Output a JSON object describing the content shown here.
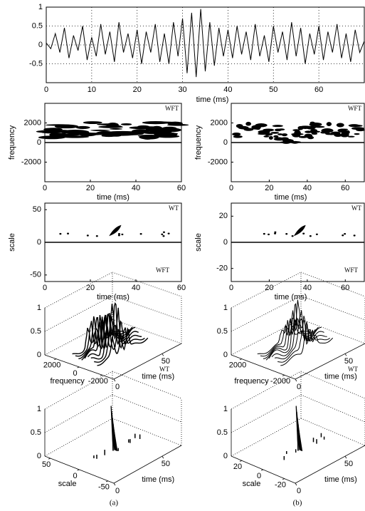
{
  "chart_data": [
    {
      "type": "line",
      "xlabel": "time (ms)",
      "color": "#000000",
      "grid": true,
      "x": [
        0,
        1,
        2,
        3,
        4,
        5,
        6,
        7,
        8,
        9,
        10,
        11,
        12,
        13,
        14,
        15,
        16,
        17,
        18,
        19,
        20,
        21,
        22,
        23,
        24,
        25,
        26,
        27,
        28,
        29,
        30,
        31,
        32,
        33,
        34,
        35,
        36,
        37,
        38,
        39,
        40,
        41,
        42,
        43,
        44,
        45,
        46,
        47,
        48,
        49,
        50,
        51,
        52,
        53,
        54,
        55,
        56,
        57,
        58,
        59,
        60,
        61,
        62,
        63,
        64,
        65,
        66,
        67,
        68,
        69,
        70
      ],
      "values": [
        0.05,
        -0.1,
        0.3,
        -0.2,
        0.45,
        -0.35,
        0.25,
        -0.15,
        0.5,
        -0.4,
        0.2,
        -0.3,
        0.55,
        -0.25,
        0.35,
        -0.45,
        0.6,
        -0.2,
        0.3,
        -0.35,
        0.4,
        -0.5,
        0.35,
        -0.2,
        0.55,
        -0.45,
        0.3,
        -0.5,
        0.6,
        -0.3,
        0.7,
        -0.75,
        0.85,
        -0.85,
        0.95,
        -0.7,
        0.6,
        -0.55,
        0.45,
        -0.3,
        0.4,
        -0.35,
        0.5,
        -0.25,
        0.35,
        -0.4,
        0.55,
        -0.3,
        0.25,
        -0.45,
        0.5,
        -0.2,
        0.35,
        -0.4,
        0.6,
        -0.3,
        0.45,
        -0.5,
        0.3,
        -0.25,
        0.5,
        -0.4,
        0.35,
        -0.2,
        0.55,
        -0.35,
        0.3,
        -0.45,
        0.4,
        -0.2,
        0.1
      ],
      "xlim": [
        0,
        70
      ],
      "ylim": [
        -1,
        1
      ],
      "xticks": [
        0,
        10,
        20,
        30,
        40,
        50,
        60
      ],
      "yticks": [
        -0.5,
        0,
        0.5,
        1
      ]
    },
    {
      "type": "spectrogram",
      "label": "WFT",
      "xlabel": "time (ms)",
      "ylabel": "frequency",
      "xlim": [
        0,
        60
      ],
      "ylim": [
        -4000,
        4000
      ],
      "xticks": [
        0,
        20,
        40,
        60
      ],
      "yticks": [
        -2000,
        0,
        2000
      ]
    },
    {
      "type": "spectrogram",
      "label": "WFT",
      "xlabel": "time (ms)",
      "ylabel": "frequency",
      "xlim": [
        0,
        70
      ],
      "ylim": [
        -4000,
        4000
      ],
      "xticks": [
        0,
        20,
        40,
        60
      ],
      "yticks": [
        -2000,
        0,
        2000
      ]
    },
    {
      "type": "scalogram",
      "label": "WT",
      "xlabel": "time (ms)",
      "ylabel": "scale",
      "xlim": [
        0,
        60
      ],
      "ylim": [
        -60,
        60
      ],
      "xticks": [
        0,
        20,
        40,
        60
      ],
      "yticks": [
        -50,
        0,
        50
      ]
    },
    {
      "type": "scalogram",
      "label": "WT",
      "xlabel": "time (ms)",
      "ylabel": "scale",
      "xlim": [
        0,
        70
      ],
      "ylim": [
        -30,
        30
      ],
      "xticks": [
        0,
        20,
        40,
        60
      ],
      "yticks": [
        -20,
        0,
        20
      ]
    },
    {
      "type": "surface3d",
      "label": "WFT",
      "xlabel": "frequency",
      "ylabel": "time (ms)",
      "xlim": [
        3000,
        -3000
      ],
      "ylim": [
        0,
        70
      ],
      "zlim": [
        0,
        1
      ],
      "xticks": [
        2000,
        0,
        -2000
      ],
      "yticks": [
        0,
        50
      ],
      "zticks": [
        0,
        0.5,
        1
      ]
    },
    {
      "type": "surface3d",
      "label": "WFT",
      "xlabel": "frequency",
      "ylabel": "time (ms)",
      "xlim": [
        3000,
        -3000
      ],
      "ylim": [
        0,
        70
      ],
      "zlim": [
        0,
        1
      ],
      "xticks": [
        2000,
        -2000
      ],
      "yticks": [
        0,
        50
      ],
      "zticks": [
        0,
        0.5,
        1
      ]
    },
    {
      "type": "spike3d",
      "label": "WT",
      "xlabel": "scale",
      "ylabel": "time (ms)",
      "xlim": [
        60,
        -60
      ],
      "ylim": [
        0,
        70
      ],
      "zlim": [
        0,
        1
      ],
      "xticks": [
        50,
        0,
        -50
      ],
      "yticks": [
        0,
        50
      ],
      "zticks": [
        0,
        0.5,
        1
      ]
    },
    {
      "type": "spike3d",
      "label": "WT",
      "xlabel": "scale",
      "ylabel": "time (ms)",
      "xlim": [
        30,
        -30
      ],
      "ylim": [
        0,
        70
      ],
      "zlim": [
        0,
        1
      ],
      "xticks": [
        20,
        0,
        -20
      ],
      "yticks": [
        0,
        50
      ],
      "zticks": [
        0,
        0.5,
        1
      ]
    }
  ],
  "captions": [
    "(a)",
    "(b)"
  ]
}
